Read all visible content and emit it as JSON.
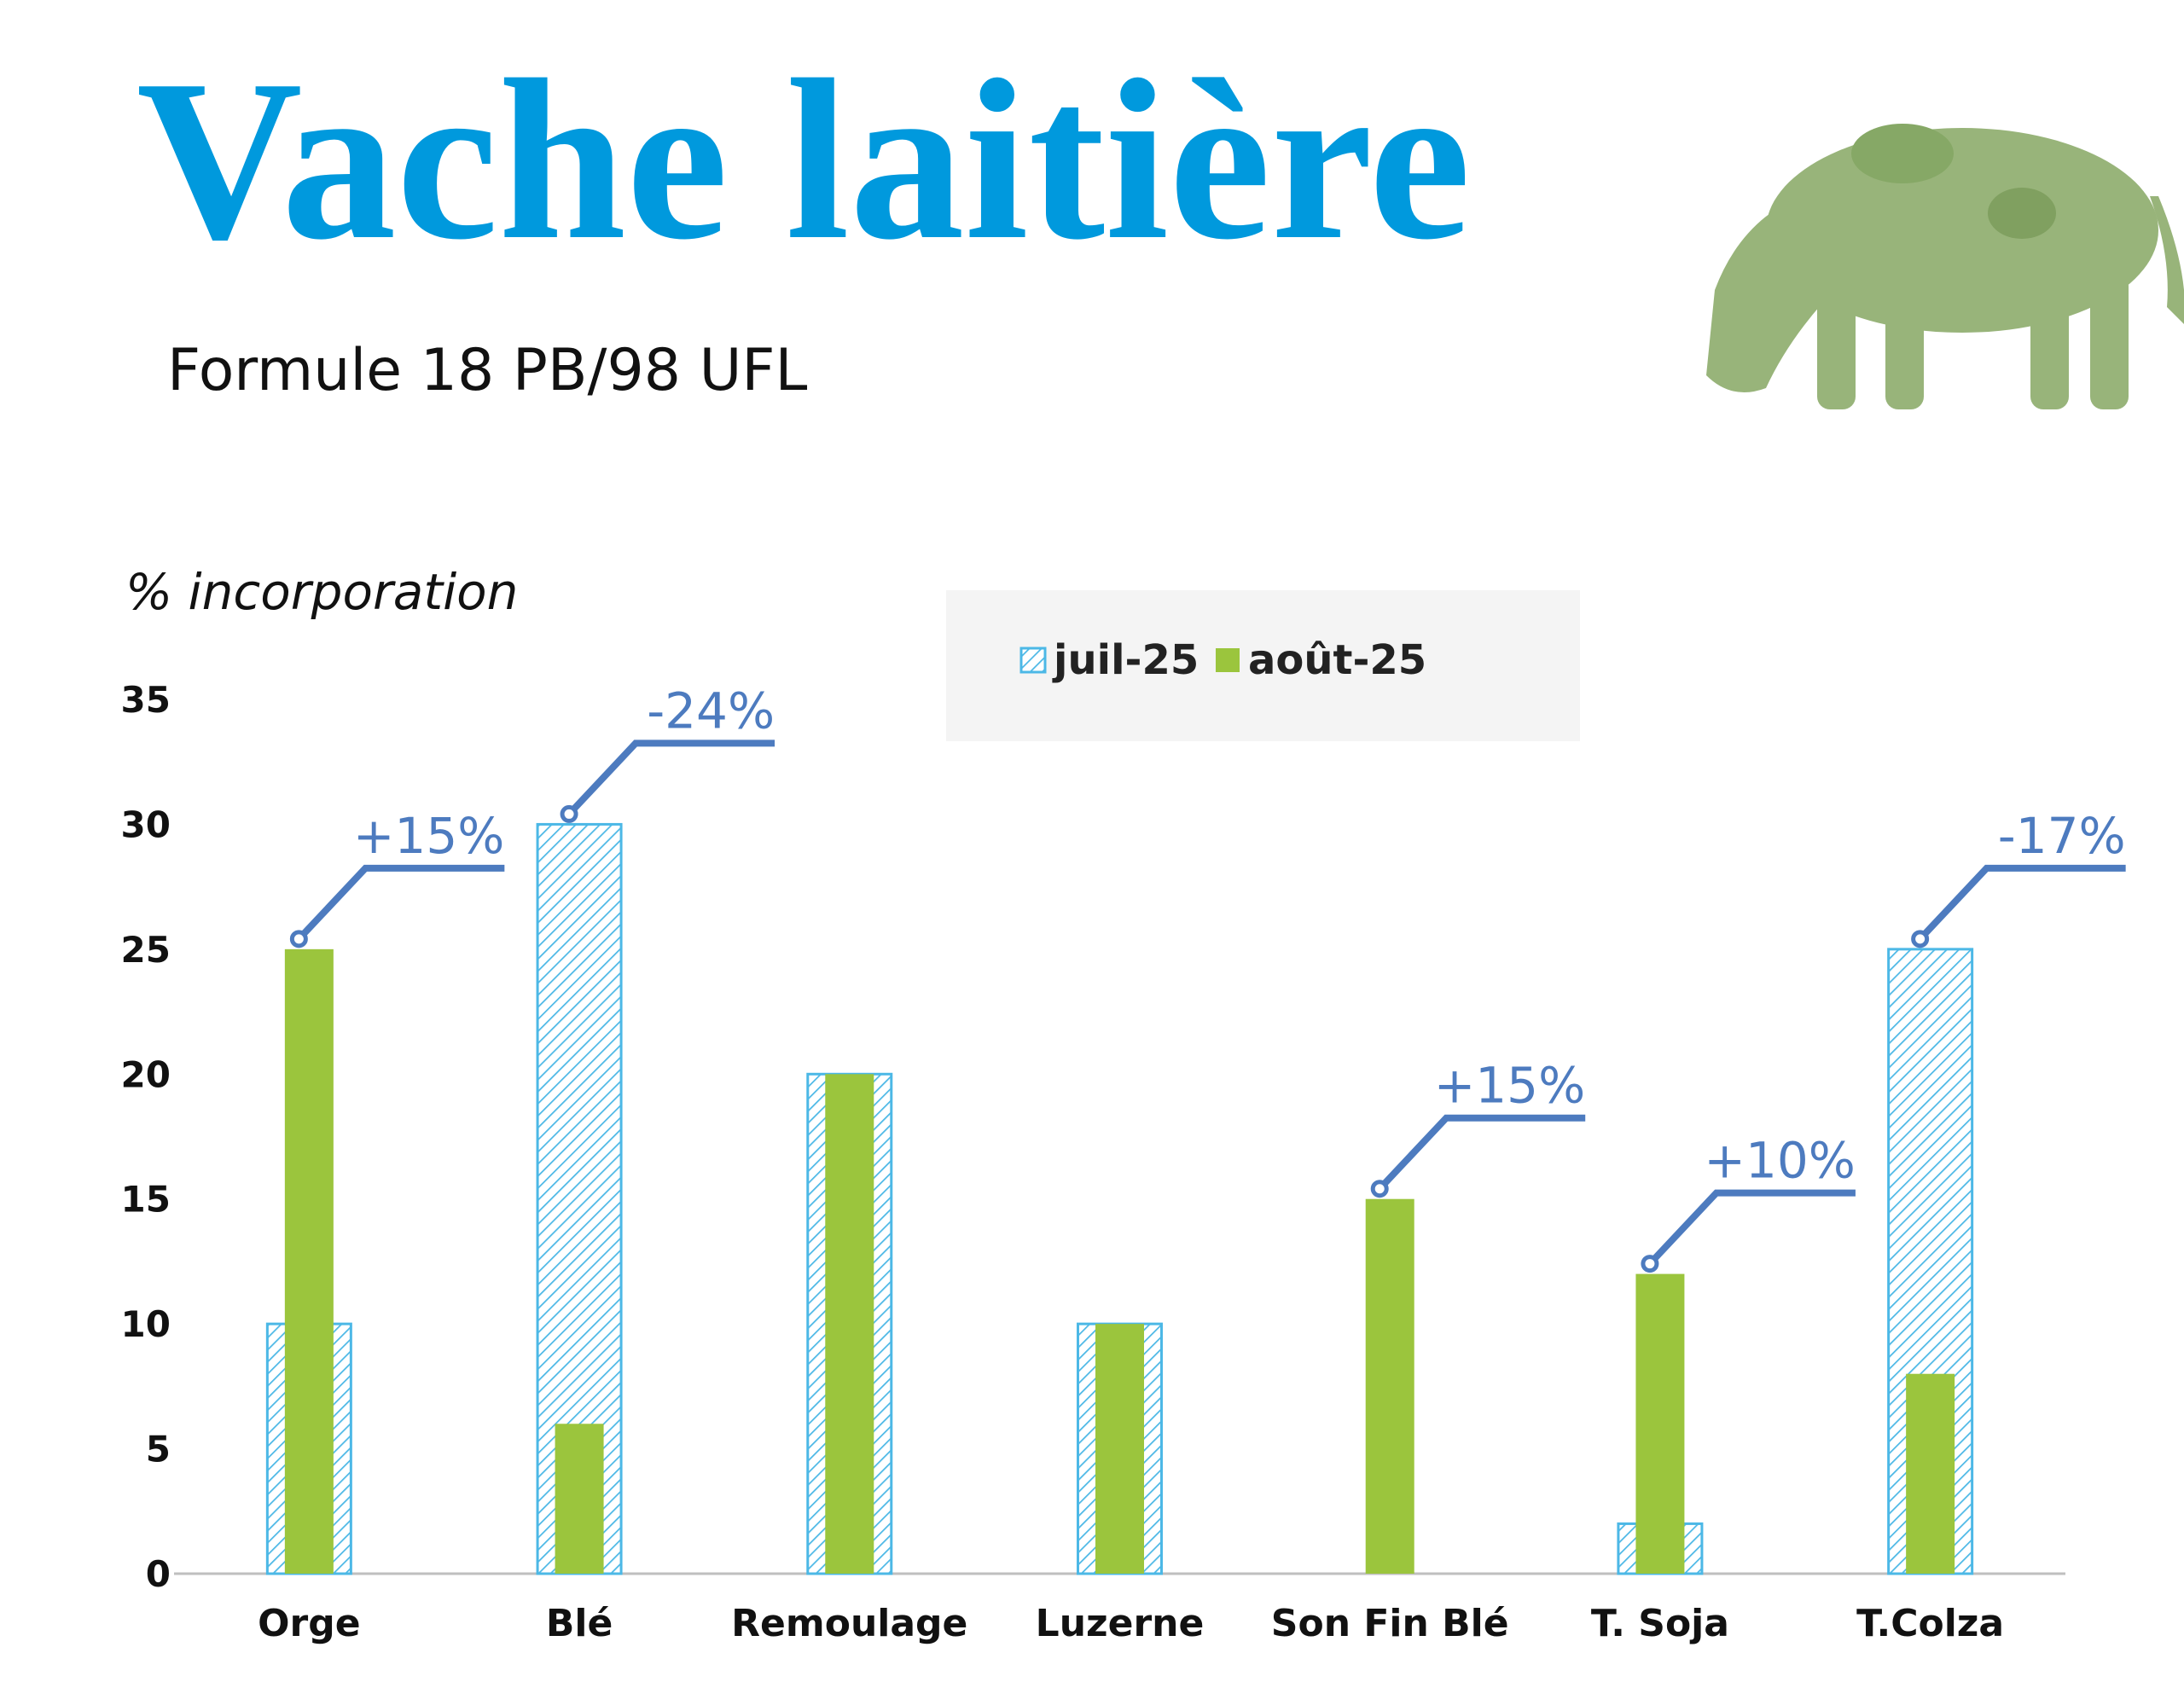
{
  "chart_data": {
    "type": "bar",
    "title": "Vache laitière",
    "subtitle": "Formule 18 PB/98 UFL",
    "y_label": "% incorporation",
    "categories": [
      "Orge",
      "Blé",
      "Remoulage",
      "Luzerne",
      "Son Fin Blé",
      "T. Soja",
      "T.Colza"
    ],
    "series": [
      {
        "name": "juil-25",
        "color": "#4cb8e6",
        "pattern": "hatch",
        "values": [
          10,
          30,
          20,
          10,
          0,
          2,
          25
        ]
      },
      {
        "name": "août-25",
        "color": "#9bc53d",
        "values": [
          25,
          6,
          20,
          10,
          15,
          12,
          8
        ]
      }
    ],
    "annotations": [
      "+15%",
      "-24%",
      null,
      null,
      "+15%",
      "+10%",
      "-17%"
    ],
    "annotation_color": "#4d7bbf",
    "ylim": [
      0,
      35
    ],
    "yticks": [
      0,
      5,
      10,
      15,
      20,
      25,
      30,
      35
    ],
    "legend": "top"
  }
}
